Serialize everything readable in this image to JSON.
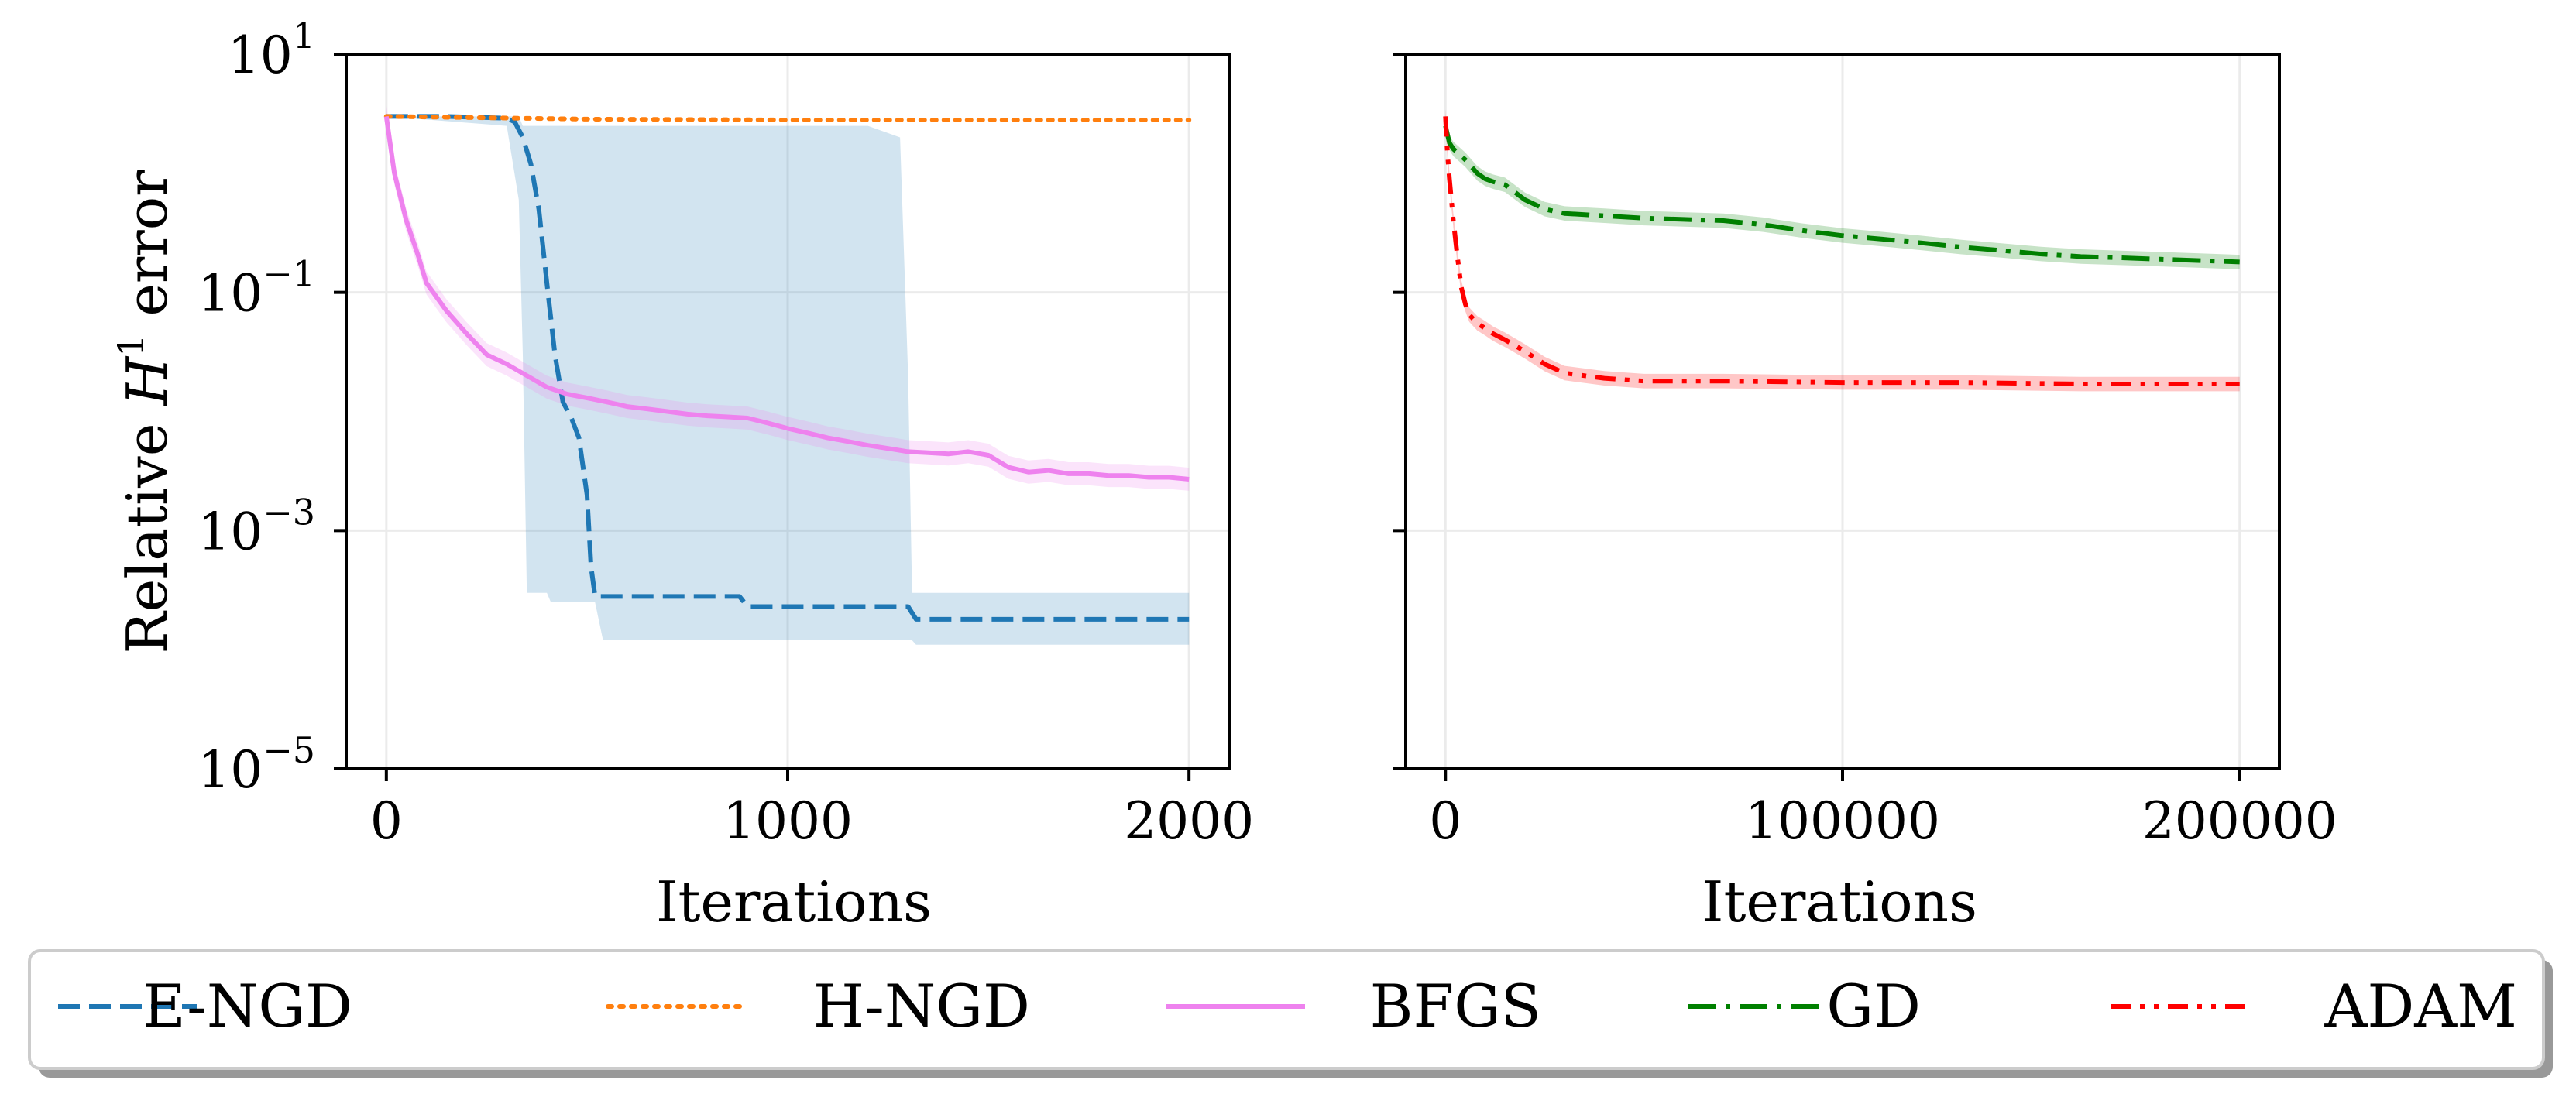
{
  "chart_data": [
    {
      "type": "line",
      "panel": "left",
      "xlabel": "Iterations",
      "ylabel": "Relative H¹ error",
      "ylabel_parts": {
        "pre": "Relative ",
        "var": "H",
        "sup": "1",
        "post": " error"
      },
      "yscale": "log",
      "xlim": [
        -100,
        2100
      ],
      "ylim": [
        1e-05,
        10
      ],
      "xticks": [
        0,
        1000,
        2000
      ],
      "xtick_labels": [
        "0",
        "1000",
        "2000"
      ],
      "yticks": [
        1e-05,
        0.001,
        0.1,
        10
      ],
      "ytick_labels": [
        {
          "base": "10",
          "exp": "−5"
        },
        {
          "base": "10",
          "exp": "−3"
        },
        {
          "base": "10",
          "exp": "−1"
        },
        {
          "base": "10",
          "exp": "1"
        }
      ],
      "grid": true,
      "series": [
        {
          "name": "E-NGD",
          "color": "#1f77b4",
          "style": "dashed",
          "x": [
            0,
            150,
            300,
            320,
            340,
            360,
            380,
            400,
            420,
            440,
            460,
            480,
            500,
            510,
            520,
            540,
            700,
            880,
            900,
            1000,
            1200,
            1300,
            1320,
            1500,
            2000
          ],
          "y": [
            3.0,
            3.0,
            2.9,
            2.7,
            2.0,
            1.2,
            0.5,
            0.12,
            0.03,
            0.012,
            0.009,
            0.006,
            0.002,
            0.0005,
            0.00028,
            0.00028,
            0.00028,
            0.00028,
            0.00023,
            0.00023,
            0.00023,
            0.00023,
            0.00018,
            0.00018,
            0.00018
          ],
          "band": {
            "x": [
              0,
              300,
              330,
              340,
              350,
              360,
              380,
              400,
              410,
              450,
              520,
              540,
              1200,
              1280,
              1300,
              1310,
              1320,
              2000
            ],
            "lower": [
              3.0,
              2.5,
              0.6,
              0.03,
              0.0003,
              0.0003,
              0.0003,
              0.0003,
              0.00025,
              0.00025,
              0.00025,
              0.00012,
              0.00012,
              0.00012,
              0.00012,
              0.00012,
              0.00011,
              0.00011
            ],
            "upper": [
              3.0,
              3.0,
              3.0,
              2.5,
              2.5,
              2.5,
              2.5,
              2.5,
              2.5,
              2.5,
              2.5,
              2.5,
              2.5,
              2.0,
              0.02,
              0.0003,
              0.0003,
              0.0003
            ]
          }
        },
        {
          "name": "H-NGD",
          "color": "#ff7f0e",
          "style": "dotted",
          "x": [
            0,
            500,
            1000,
            1500,
            2000
          ],
          "y": [
            3.0,
            2.85,
            2.8,
            2.8,
            2.8
          ]
        },
        {
          "name": "BFGS",
          "color": "#ee82ee",
          "style": "solid",
          "x": [
            0,
            20,
            50,
            80,
            100,
            150,
            200,
            250,
            300,
            350,
            400,
            450,
            500,
            550,
            600,
            650,
            700,
            750,
            800,
            850,
            900,
            950,
            1000,
            1050,
            1100,
            1150,
            1200,
            1250,
            1300,
            1350,
            1400,
            1450,
            1500,
            1550,
            1600,
            1650,
            1700,
            1750,
            1800,
            1850,
            1900,
            1950,
            2000
          ],
          "y": [
            3.0,
            1.0,
            0.4,
            0.2,
            0.12,
            0.07,
            0.045,
            0.03,
            0.025,
            0.02,
            0.016,
            0.014,
            0.013,
            0.012,
            0.011,
            0.0105,
            0.01,
            0.0095,
            0.0092,
            0.009,
            0.0088,
            0.008,
            0.0072,
            0.0066,
            0.006,
            0.0056,
            0.0052,
            0.0049,
            0.0046,
            0.0045,
            0.0044,
            0.0046,
            0.0043,
            0.0034,
            0.0031,
            0.0032,
            0.003,
            0.003,
            0.0029,
            0.0029,
            0.0028,
            0.0028,
            0.0027
          ],
          "band_factor": 1.25
        }
      ]
    },
    {
      "type": "line",
      "panel": "right",
      "xlabel": "Iterations",
      "yscale": "log",
      "xlim": [
        -10000,
        210000
      ],
      "ylim": [
        1e-05,
        10
      ],
      "xticks": [
        0,
        100000,
        200000
      ],
      "xtick_labels": [
        "0",
        "100000",
        "200000"
      ],
      "grid": true,
      "series": [
        {
          "name": "GD",
          "color": "#008000",
          "style": "dashdot",
          "x": [
            0,
            1000,
            2000,
            5000,
            8000,
            10000,
            12000,
            15000,
            20000,
            25000,
            30000,
            40000,
            50000,
            60000,
            70000,
            80000,
            90000,
            100000,
            110000,
            120000,
            130000,
            140000,
            150000,
            160000,
            170000,
            180000,
            190000,
            200000
          ],
          "y": [
            2.5,
            1.8,
            1.6,
            1.3,
            1.0,
            0.9,
            0.85,
            0.8,
            0.6,
            0.5,
            0.46,
            0.44,
            0.42,
            0.41,
            0.4,
            0.37,
            0.33,
            0.3,
            0.28,
            0.26,
            0.24,
            0.225,
            0.21,
            0.2,
            0.195,
            0.19,
            0.185,
            0.18
          ],
          "band_factor": 1.15
        },
        {
          "name": "ADAM",
          "color": "#ff0000",
          "style": "dashdotdot",
          "x": [
            0,
            500,
            1000,
            2000,
            3000,
            4000,
            5000,
            6000,
            8000,
            10000,
            12000,
            15000,
            18000,
            20000,
            25000,
            30000,
            40000,
            50000,
            70000,
            100000,
            130000,
            160000,
            200000
          ],
          "y": [
            3.0,
            1.5,
            0.9,
            0.4,
            0.2,
            0.11,
            0.08,
            0.065,
            0.055,
            0.05,
            0.045,
            0.04,
            0.035,
            0.032,
            0.025,
            0.021,
            0.019,
            0.018,
            0.018,
            0.0175,
            0.0175,
            0.017,
            0.017
          ],
          "band_factor": 1.15
        }
      ]
    }
  ],
  "legend": {
    "placement": "bottom",
    "entries": [
      {
        "label": "E-NGD",
        "color": "#1f77b4",
        "style": "dashed"
      },
      {
        "label": "H-NGD",
        "color": "#ff7f0e",
        "style": "dotted"
      },
      {
        "label": "BFGS",
        "color": "#ee82ee",
        "style": "solid"
      },
      {
        "label": "GD",
        "color": "#008000",
        "style": "dashdot"
      },
      {
        "label": "ADAM",
        "color": "#ff0000",
        "style": "dashdotdot"
      }
    ]
  }
}
